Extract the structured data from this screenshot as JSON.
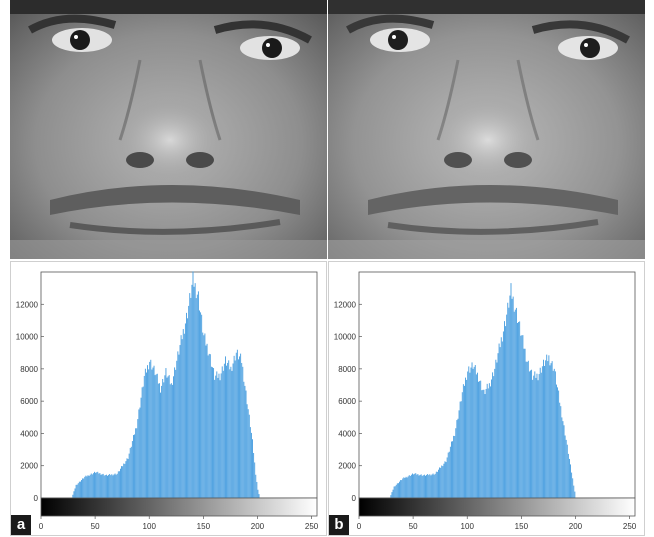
{
  "panels": [
    {
      "label": "a",
      "chart_data": {
        "type": "bar",
        "xlim": [
          0,
          255
        ],
        "ylim": [
          0,
          14000
        ],
        "xticks": [
          0,
          50,
          100,
          150,
          200,
          250
        ],
        "yticks": [
          0,
          2000,
          4000,
          6000,
          8000,
          10000,
          12000
        ],
        "bar_color": "#4a9fe0",
        "profile": [
          [
            28,
            0
          ],
          [
            32,
            800
          ],
          [
            40,
            1300
          ],
          [
            50,
            1600
          ],
          [
            60,
            1400
          ],
          [
            70,
            1500
          ],
          [
            80,
            2500
          ],
          [
            88,
            4500
          ],
          [
            95,
            7500
          ],
          [
            100,
            8500
          ],
          [
            105,
            7800
          ],
          [
            110,
            6800
          ],
          [
            115,
            7800
          ],
          [
            120,
            7000
          ],
          [
            130,
            10000
          ],
          [
            135,
            11500
          ],
          [
            140,
            13500
          ],
          [
            145,
            12500
          ],
          [
            150,
            10000
          ],
          [
            155,
            9000
          ],
          [
            160,
            7500
          ],
          [
            165,
            7600
          ],
          [
            170,
            8500
          ],
          [
            175,
            8000
          ],
          [
            180,
            9000
          ],
          [
            185,
            8500
          ],
          [
            190,
            6000
          ],
          [
            195,
            3500
          ],
          [
            198,
            1500
          ],
          [
            200,
            500
          ],
          [
            202,
            0
          ]
        ]
      }
    },
    {
      "label": "b",
      "chart_data": {
        "type": "bar",
        "xlim": [
          0,
          255
        ],
        "ylim": [
          0,
          14000
        ],
        "xticks": [
          0,
          50,
          100,
          150,
          200,
          250
        ],
        "yticks": [
          0,
          2000,
          4000,
          6000,
          8000,
          10000,
          12000
        ],
        "bar_color": "#4a9fe0",
        "profile": [
          [
            28,
            0
          ],
          [
            32,
            700
          ],
          [
            40,
            1200
          ],
          [
            50,
            1500
          ],
          [
            60,
            1400
          ],
          [
            70,
            1500
          ],
          [
            80,
            2300
          ],
          [
            88,
            4000
          ],
          [
            95,
            6500
          ],
          [
            100,
            7900
          ],
          [
            105,
            8200
          ],
          [
            110,
            7500
          ],
          [
            115,
            6500
          ],
          [
            120,
            7000
          ],
          [
            125,
            8000
          ],
          [
            130,
            9500
          ],
          [
            135,
            11000
          ],
          [
            140,
            12800
          ],
          [
            145,
            11500
          ],
          [
            150,
            10000
          ],
          [
            155,
            8500
          ],
          [
            160,
            7500
          ],
          [
            165,
            7600
          ],
          [
            170,
            8300
          ],
          [
            175,
            8700
          ],
          [
            180,
            8000
          ],
          [
            185,
            6000
          ],
          [
            190,
            4000
          ],
          [
            195,
            2000
          ],
          [
            198,
            800
          ],
          [
            200,
            0
          ]
        ]
      }
    }
  ]
}
